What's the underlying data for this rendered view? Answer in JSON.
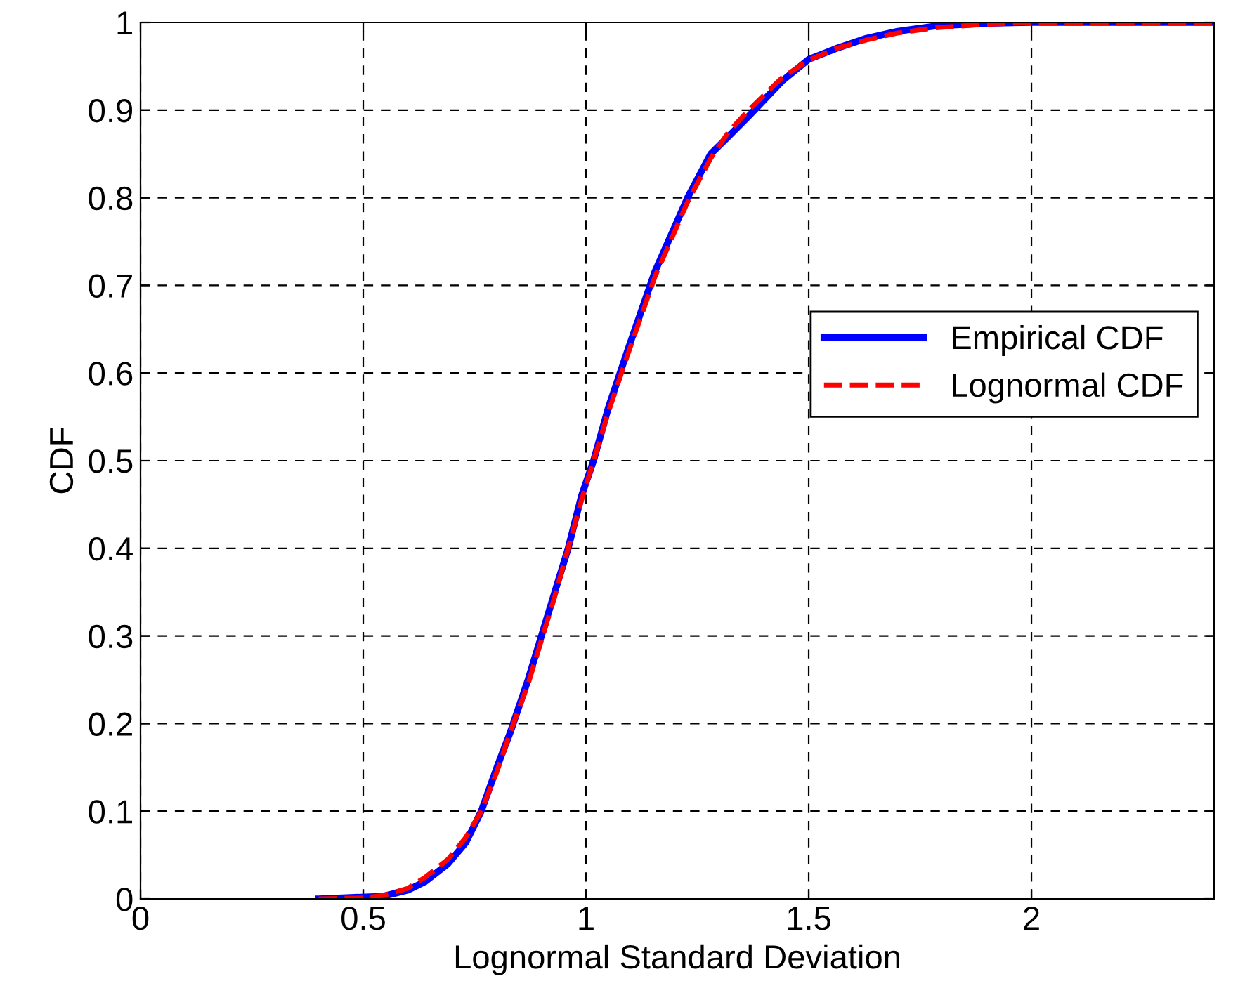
{
  "chart_data": {
    "type": "line",
    "xlabel": "Lognormal Standard Deviation",
    "ylabel": "CDF",
    "xlim": [
      0,
      2.41
    ],
    "xticks": [
      0,
      0.5,
      1,
      1.5,
      2
    ],
    "ylim": [
      0,
      1
    ],
    "yticks": [
      0,
      0.1,
      0.2,
      0.3,
      0.4,
      0.5,
      0.6,
      0.7,
      0.8,
      0.9,
      1
    ],
    "grid": true,
    "legend": "right",
    "series": [
      {
        "name": "Empirical CDF",
        "color": "#0000ff",
        "line_style": "solid",
        "x": [
          0.4,
          0.545,
          0.6,
          0.64,
          0.69,
          0.73,
          0.765,
          0.8,
          0.83,
          0.87,
          0.9,
          0.93,
          0.96,
          0.99,
          1.017,
          1.05,
          1.093,
          1.155,
          1.228,
          1.28,
          1.32,
          1.365,
          1.44,
          1.5,
          1.56,
          1.63,
          1.7,
          1.785,
          1.9,
          1.995,
          2.2,
          2.41
        ],
        "values": [
          0,
          0.003,
          0.01,
          0.02,
          0.04,
          0.064,
          0.1,
          0.15,
          0.19,
          0.25,
          0.3,
          0.35,
          0.4,
          0.46,
          0.5,
          0.56,
          0.625,
          0.716,
          0.8,
          0.85,
          0.87,
          0.893,
          0.933,
          0.958,
          0.97,
          0.982,
          0.99,
          0.996,
          0.999,
          1,
          1,
          1
        ]
      },
      {
        "name": "Lognormal CDF",
        "color": "#ff0000",
        "line_style": "dashed",
        "x": [
          0.4,
          0.5,
          0.545,
          0.6,
          0.64,
          0.69,
          0.73,
          0.765,
          0.8,
          0.83,
          0.87,
          0.9,
          0.93,
          0.96,
          0.99,
          1.017,
          1.05,
          1.093,
          1.155,
          1.228,
          1.28,
          1.32,
          1.365,
          1.44,
          1.5,
          1.56,
          1.63,
          1.7,
          1.785,
          1.9,
          1.995,
          2.2,
          2.41
        ],
        "values": [
          0,
          0.001,
          0.004,
          0.012,
          0.025,
          0.045,
          0.07,
          0.1,
          0.145,
          0.19,
          0.245,
          0.295,
          0.345,
          0.4,
          0.455,
          0.5,
          0.555,
          0.62,
          0.71,
          0.795,
          0.845,
          0.875,
          0.9,
          0.937,
          0.957,
          0.97,
          0.98,
          0.988,
          0.994,
          0.998,
          1,
          1,
          1
        ]
      }
    ]
  }
}
